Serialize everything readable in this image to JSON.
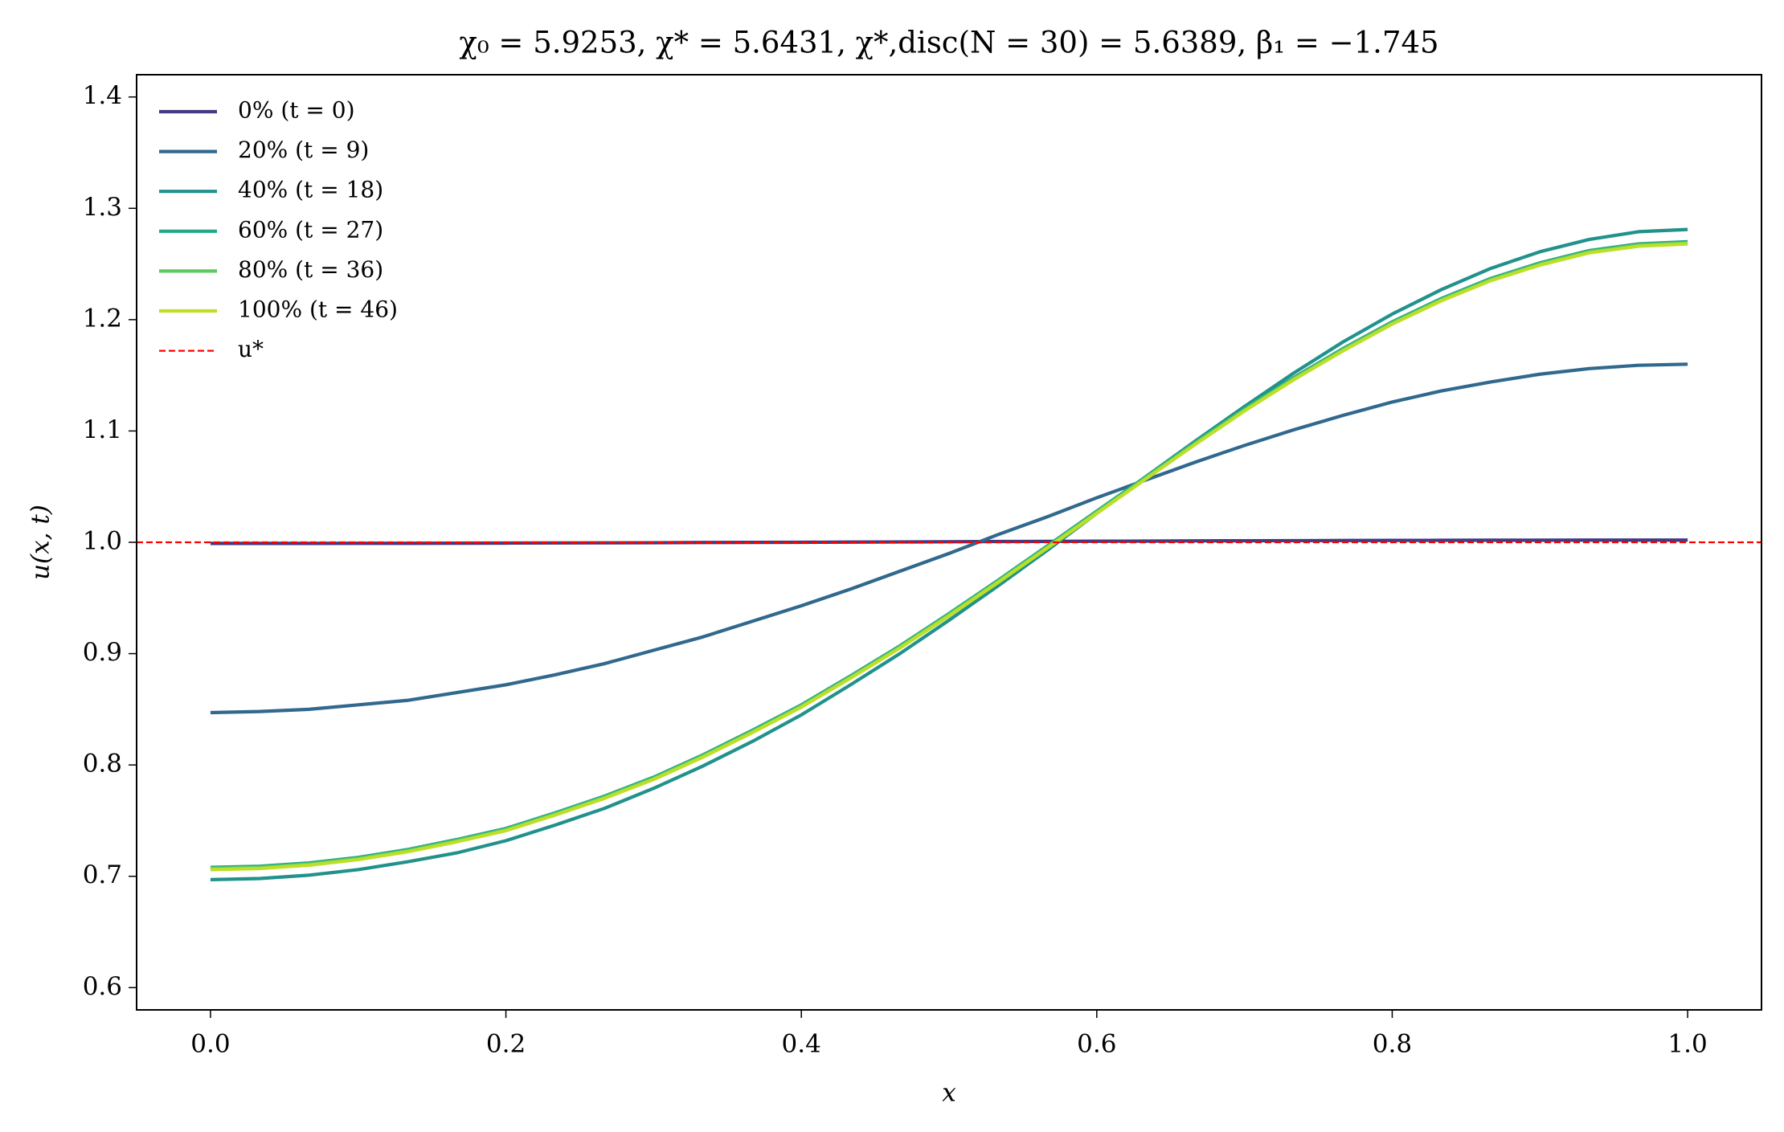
{
  "chart_data": {
    "type": "line",
    "title": "χ₀ = 5.9253,  χ* = 5.6431,  χ*,disc(N = 30) = 5.6389,  β₁ = −1.745",
    "xlabel": "x",
    "ylabel": "u(x, t)",
    "x": [
      0,
      0.0333,
      0.0667,
      0.1,
      0.1333,
      0.1667,
      0.2,
      0.2333,
      0.2667,
      0.3,
      0.3333,
      0.3667,
      0.4,
      0.4333,
      0.4667,
      0.5,
      0.5333,
      0.5667,
      0.6,
      0.6333,
      0.6667,
      0.7,
      0.7333,
      0.7667,
      0.8,
      0.8333,
      0.8667,
      0.9,
      0.9333,
      0.9667,
      1
    ],
    "series": [
      {
        "name": "0% (t = 0)",
        "color": "#443983",
        "values": [
          0.999,
          0.999,
          0.999,
          0.9991,
          0.9991,
          0.9992,
          0.9993,
          0.9994,
          0.9995,
          0.9996,
          0.9998,
          0.9999,
          1.0,
          1.0002,
          1.0003,
          1.0005,
          1.0007,
          1.0008,
          1.001,
          1.0011,
          1.0013,
          1.0014,
          1.0015,
          1.0016,
          1.0017,
          1.0018,
          1.0019,
          1.0019,
          1.002,
          1.002,
          1.002
        ]
      },
      {
        "name": "20% (t = 9)",
        "color": "#31688e",
        "values": [
          0.847,
          0.848,
          0.85,
          0.854,
          0.858,
          0.865,
          0.872,
          0.881,
          0.891,
          0.903,
          0.915,
          0.929,
          0.943,
          0.958,
          0.974,
          0.99,
          1.007,
          1.023,
          1.04,
          1.056,
          1.072,
          1.087,
          1.101,
          1.114,
          1.126,
          1.136,
          1.144,
          1.151,
          1.156,
          1.159,
          1.16
        ]
      },
      {
        "name": "40% (t = 18)",
        "color": "#21918c",
        "values": [
          0.697,
          0.698,
          0.701,
          0.706,
          0.713,
          0.721,
          0.732,
          0.746,
          0.761,
          0.779,
          0.799,
          0.821,
          0.845,
          0.872,
          0.9,
          0.93,
          0.961,
          0.993,
          1.026,
          1.059,
          1.091,
          1.122,
          1.152,
          1.18,
          1.205,
          1.227,
          1.246,
          1.261,
          1.272,
          1.279,
          1.281
        ]
      },
      {
        "name": "60% (t = 27)",
        "color": "#22a884",
        "values": [
          0.708,
          0.709,
          0.712,
          0.717,
          0.724,
          0.733,
          0.743,
          0.757,
          0.772,
          0.789,
          0.809,
          0.831,
          0.854,
          0.88,
          0.907,
          0.936,
          0.966,
          0.997,
          1.028,
          1.059,
          1.09,
          1.12,
          1.148,
          1.174,
          1.198,
          1.219,
          1.237,
          1.251,
          1.262,
          1.268,
          1.27
        ]
      },
      {
        "name": "80% (t = 36)",
        "color": "#5ec962",
        "values": [
          0.707,
          0.708,
          0.711,
          0.716,
          0.723,
          0.732,
          0.742,
          0.756,
          0.771,
          0.788,
          0.808,
          0.83,
          0.853,
          0.879,
          0.906,
          0.935,
          0.965,
          0.996,
          1.027,
          1.058,
          1.089,
          1.119,
          1.147,
          1.173,
          1.197,
          1.218,
          1.236,
          1.25,
          1.261,
          1.267,
          1.269
        ]
      },
      {
        "name": "100% (t = 46)",
        "color": "#bddf26",
        "values": [
          0.706,
          0.707,
          0.71,
          0.715,
          0.722,
          0.731,
          0.741,
          0.755,
          0.77,
          0.787,
          0.807,
          0.829,
          0.852,
          0.878,
          0.905,
          0.934,
          0.964,
          0.995,
          1.026,
          1.057,
          1.088,
          1.118,
          1.146,
          1.172,
          1.196,
          1.217,
          1.235,
          1.249,
          1.26,
          1.266,
          1.268
        ]
      }
    ],
    "hlines": [
      {
        "name": "u*",
        "value": 1,
        "color": "#ff0000",
        "linestyle": "dashed"
      }
    ],
    "xlim": [
      -0.05,
      1.05
    ],
    "ylim": [
      0.58,
      1.42
    ],
    "xticks": [
      {
        "value": 0,
        "label": "0.0"
      },
      0.2,
      0.4,
      0.6,
      0.8,
      {
        "value": 1,
        "label": "1.0"
      }
    ],
    "yticks": [
      0.6,
      0.7,
      0.8,
      0.9,
      {
        "value": 1,
        "label": "1.0"
      },
      1.1,
      1.2,
      1.3,
      1.4
    ],
    "grid": false,
    "legend": "upper left"
  }
}
